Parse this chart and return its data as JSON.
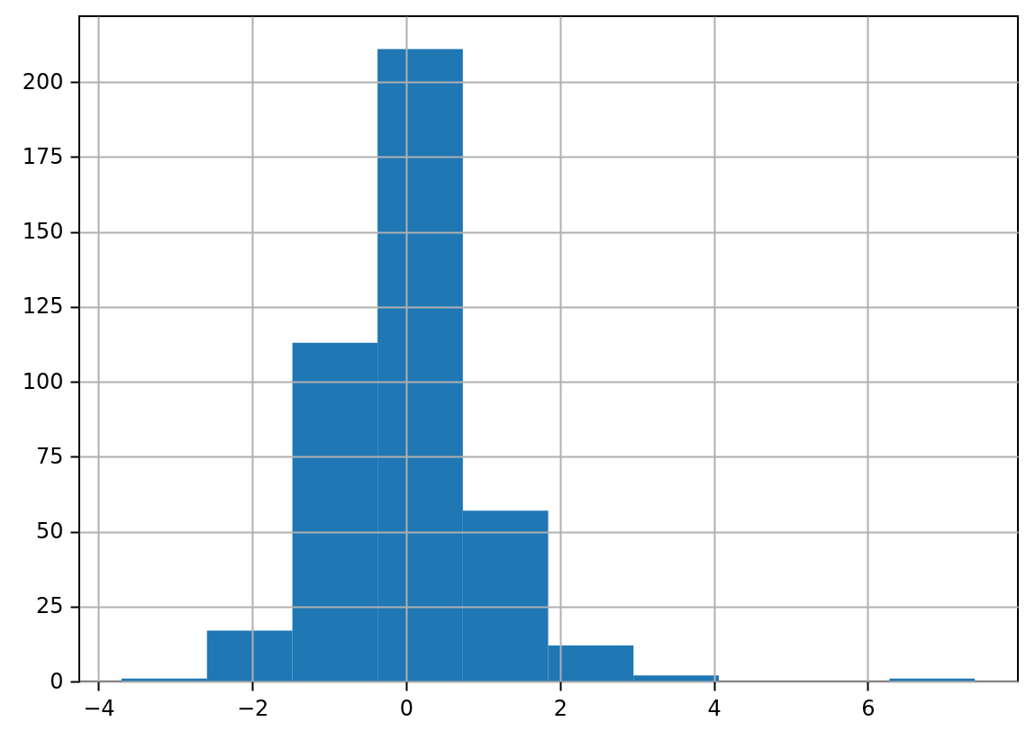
{
  "chart_data": {
    "type": "histogram",
    "bins": [
      -3.7,
      -2.59,
      -1.48,
      -0.373,
      0.736,
      1.845,
      2.954,
      4.063,
      5.172,
      6.281,
      7.39
    ],
    "values": [
      1,
      17,
      113,
      211,
      57,
      12,
      2,
      0,
      0,
      1
    ],
    "color": "#1f77b4",
    "xlim": [
      -4.25,
      7.95
    ],
    "ylim": [
      0,
      222
    ],
    "xticks": [
      {
        "value": -4,
        "label": "−4"
      },
      {
        "value": -2,
        "label": "−2"
      },
      0,
      2,
      4,
      6
    ],
    "yticks": [
      0,
      25,
      50,
      75,
      100,
      125,
      150,
      175,
      200
    ],
    "grid": true
  }
}
